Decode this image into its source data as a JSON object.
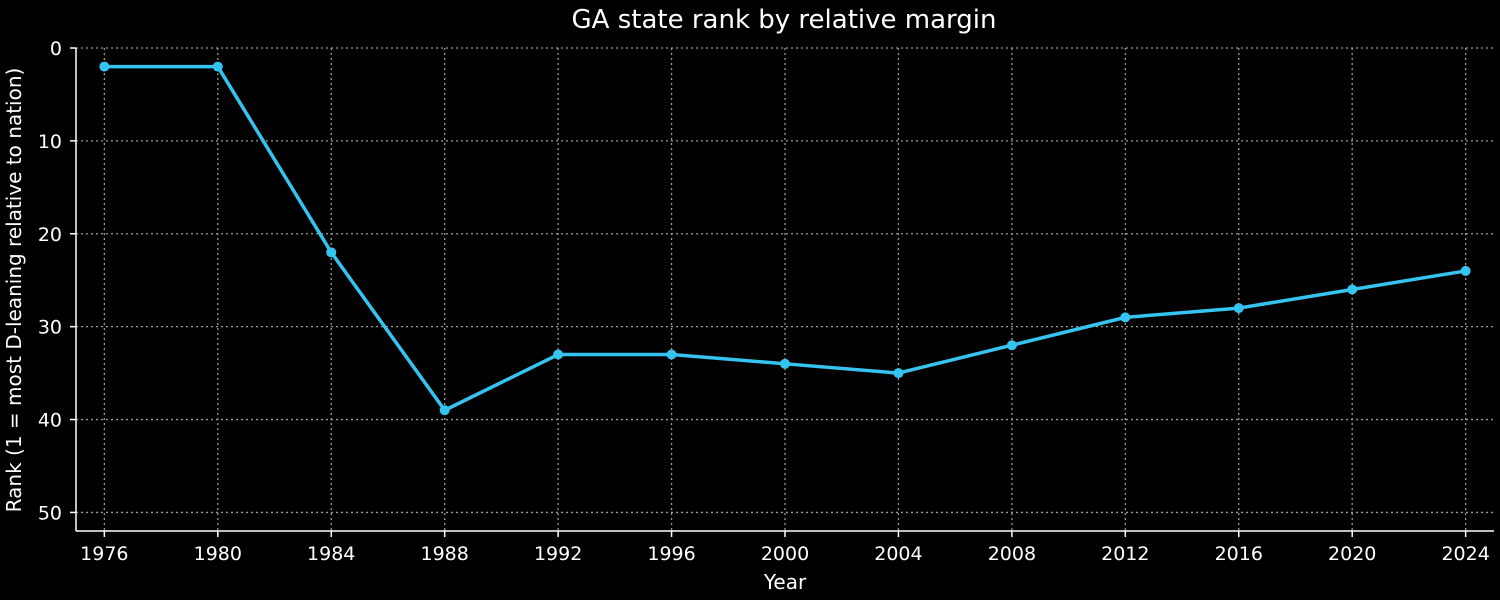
{
  "chart_data": {
    "type": "line",
    "title": "GA state rank by relative margin",
    "xlabel": "Year",
    "ylabel": "Rank (1 = most D-leaning relative to nation)",
    "x": [
      1976,
      1980,
      1984,
      1988,
      1992,
      1996,
      2000,
      2004,
      2008,
      2012,
      2016,
      2020,
      2024
    ],
    "series": [
      {
        "values": [
          2,
          2,
          22,
          39,
          33,
          33,
          34,
          35,
          32,
          29,
          28,
          26,
          24
        ],
        "color": "#35c3ef"
      }
    ],
    "x_ticks": [
      1976,
      1980,
      1984,
      1988,
      1992,
      1996,
      2000,
      2004,
      2008,
      2012,
      2016,
      2020,
      2024
    ],
    "y_ticks": [
      0,
      10,
      20,
      30,
      40,
      50
    ],
    "xlim": [
      1975,
      2025
    ],
    "ylim": [
      52,
      0
    ],
    "y_inverted": true,
    "grid": true,
    "background": "#000000",
    "text_color": "#ffffff"
  }
}
